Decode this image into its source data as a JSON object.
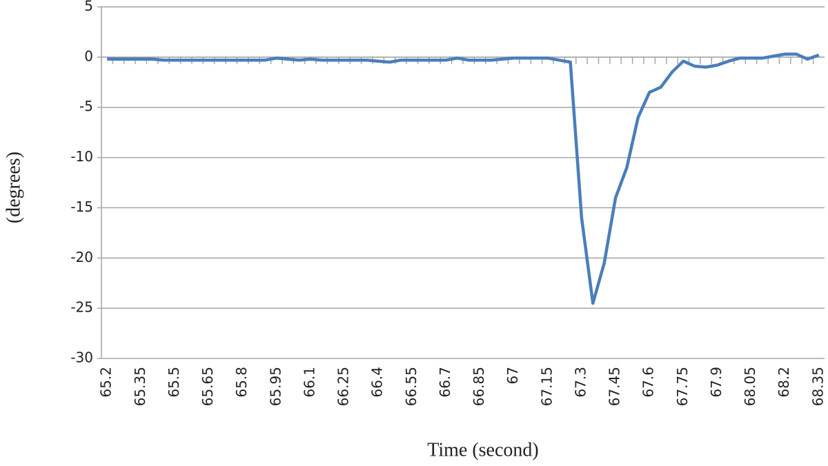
{
  "chart_data": {
    "type": "line",
    "x_label": "Time (second)",
    "y_label": "(degrees)",
    "categories": [
      "65.2",
      null,
      null,
      "65.35",
      null,
      null,
      "65.5",
      null,
      null,
      "65.65",
      null,
      null,
      "65.8",
      null,
      null,
      "65.95",
      null,
      null,
      "66.1",
      null,
      null,
      "66.25",
      null,
      null,
      "66.4",
      null,
      null,
      "66.55",
      null,
      null,
      "66.7",
      null,
      null,
      "66.85",
      null,
      null,
      "67",
      null,
      null,
      "67.15",
      null,
      null,
      "67.3",
      null,
      null,
      "67.45",
      null,
      null,
      "67.6",
      null,
      null,
      "67.75",
      null,
      null,
      "67.9",
      null,
      null,
      "68.05",
      null,
      null,
      "68.2",
      null,
      null,
      "68.35"
    ],
    "values": [
      -0.2,
      -0.2,
      -0.2,
      -0.2,
      -0.2,
      -0.3,
      -0.3,
      -0.3,
      -0.3,
      -0.3,
      -0.3,
      -0.3,
      -0.3,
      -0.3,
      -0.3,
      -0.1,
      -0.2,
      -0.3,
      -0.2,
      -0.3,
      -0.3,
      -0.3,
      -0.3,
      -0.3,
      -0.4,
      -0.5,
      -0.3,
      -0.3,
      -0.3,
      -0.3,
      -0.3,
      -0.1,
      -0.3,
      -0.3,
      -0.3,
      -0.2,
      -0.1,
      -0.1,
      -0.1,
      -0.1,
      -0.3,
      -0.5,
      -16,
      -24.5,
      -20.5,
      -14,
      -11,
      -6,
      -3.5,
      -3,
      -1.5,
      -0.4,
      -0.9,
      -1,
      -0.8,
      -0.4,
      -0.1,
      -0.1,
      -0.1,
      0.1,
      0.3,
      0.3,
      -0.2,
      0.2
    ],
    "color": "#4a7ebb",
    "ylim": [
      -30,
      5
    ],
    "yticks": [
      -30,
      -25,
      -20,
      -15,
      -10,
      -5,
      0,
      5
    ],
    "grid": true
  }
}
